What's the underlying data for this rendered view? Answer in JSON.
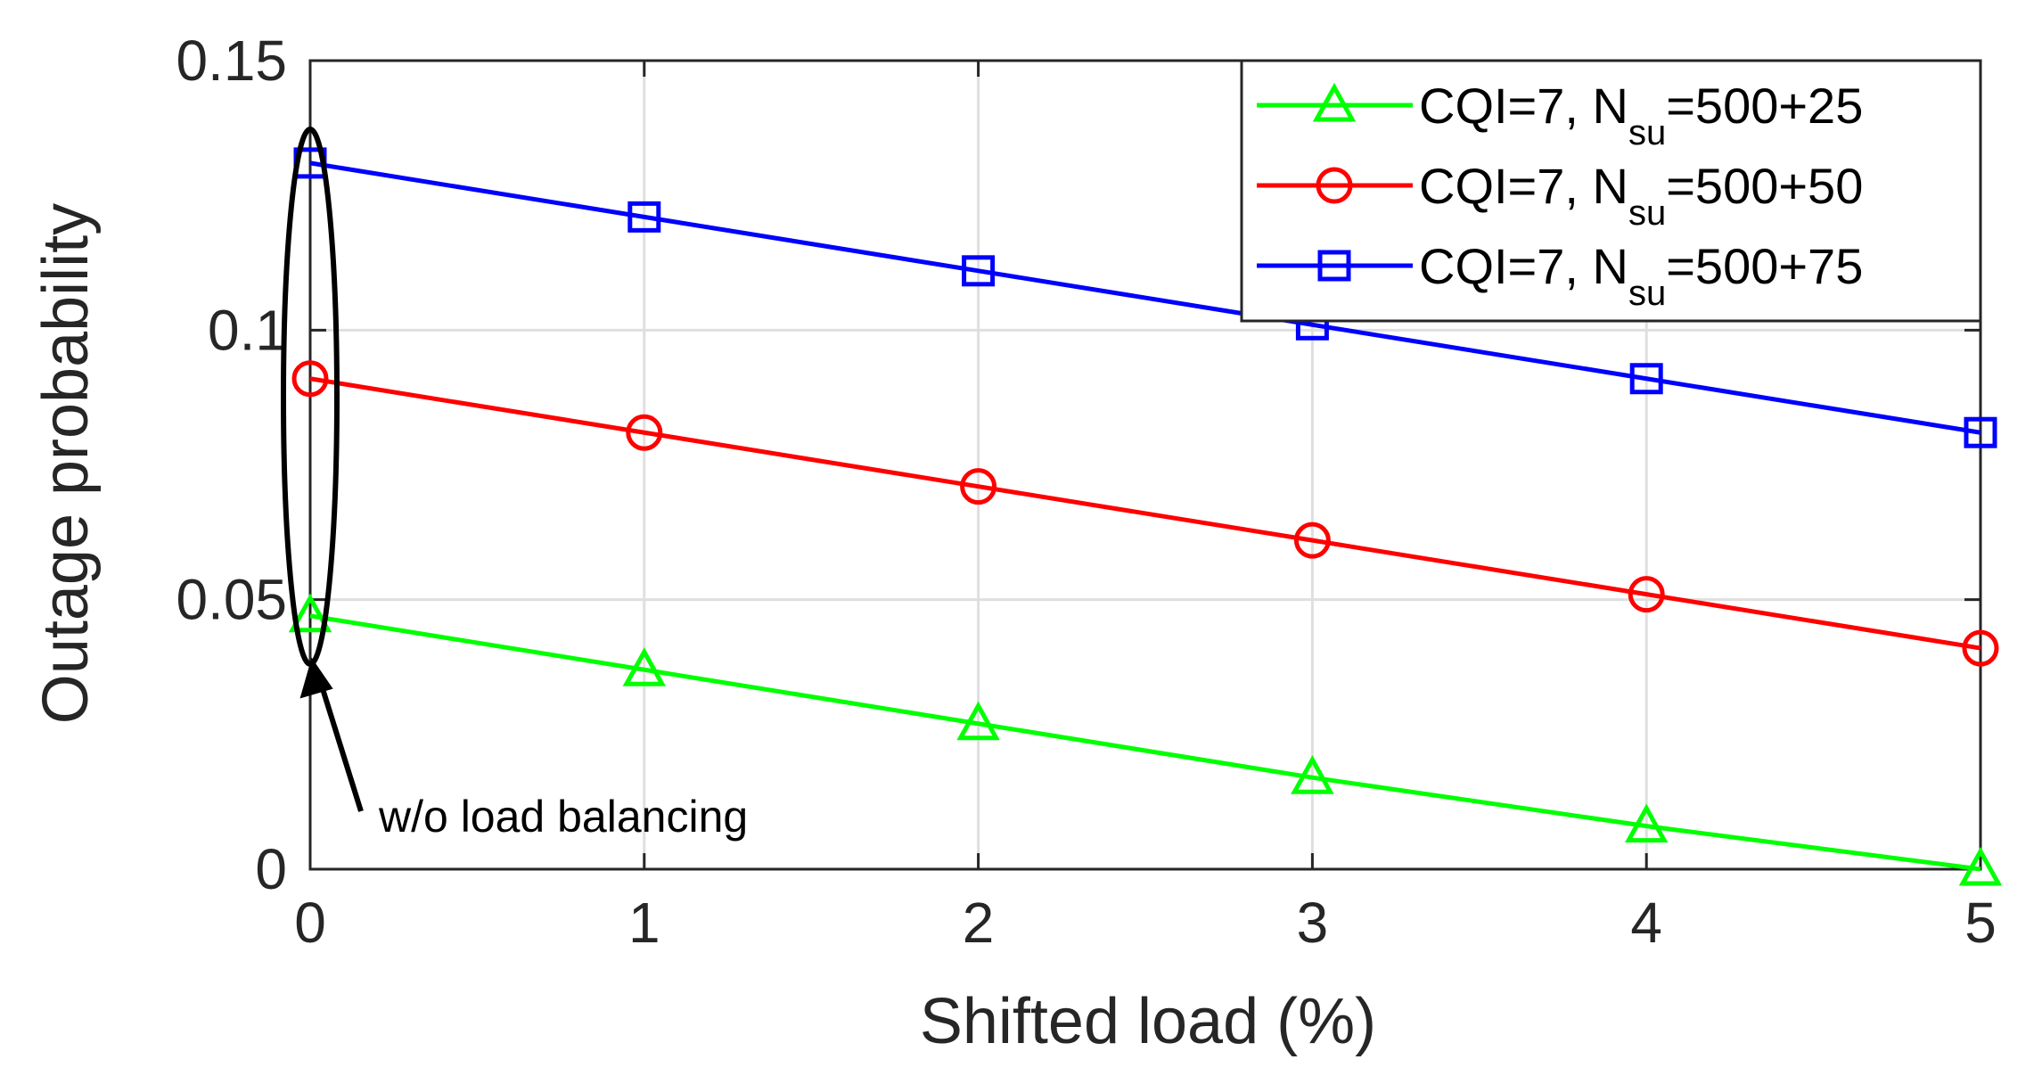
{
  "chart_data": {
    "type": "line",
    "title": "",
    "xlabel": "Shifted load (%)",
    "ylabel": "Outage probability",
    "xlim": [
      0,
      5
    ],
    "ylim": [
      0,
      0.15
    ],
    "x_ticks": [
      0,
      1,
      2,
      3,
      4,
      5
    ],
    "x_tick_labels": [
      "0",
      "1",
      "2",
      "3",
      "4",
      "5"
    ],
    "y_ticks": [
      0,
      0.05,
      0.1,
      0.15
    ],
    "y_tick_labels": [
      "0",
      "0.05",
      "0.1",
      "0.15"
    ],
    "grid": true,
    "legend_position": "top-right",
    "x": [
      0,
      1,
      2,
      3,
      4,
      5
    ],
    "series": [
      {
        "label_main": "CQI=7, N",
        "label_sub": "su",
        "label_tail": "=500+25",
        "color": "#00ff00",
        "marker": "triangle",
        "values": [
          0.047,
          0.037,
          0.027,
          0.017,
          0.008,
          0.0
        ]
      },
      {
        "label_main": "CQI=7, N",
        "label_sub": "su",
        "label_tail": "=500+50",
        "color": "#ff0000",
        "marker": "circle",
        "values": [
          0.091,
          0.081,
          0.071,
          0.061,
          0.051,
          0.041
        ]
      },
      {
        "label_main": "CQI=7, N",
        "label_sub": "su",
        "label_tail": "=500+75",
        "color": "#0000ff",
        "marker": "square",
        "values": [
          0.131,
          0.121,
          0.111,
          0.101,
          0.091,
          0.081
        ]
      }
    ],
    "annotation": {
      "text": "w/o load balancing",
      "target_x": 0,
      "target_y": 0.047
    }
  }
}
